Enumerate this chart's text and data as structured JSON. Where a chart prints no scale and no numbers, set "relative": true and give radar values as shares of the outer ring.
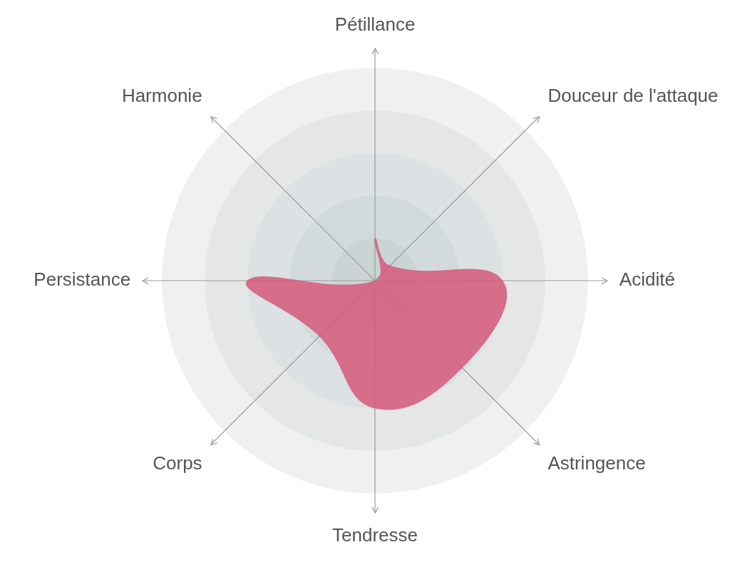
{
  "chart_data": {
    "type": "radar",
    "relative": true,
    "categories": [
      "Pétillance",
      "Douceur de l'attaque",
      "Acidité",
      "Astringence",
      "Tendresse",
      "Corps",
      "Persistance",
      "Harmonie"
    ],
    "series": [
      {
        "color": "#d45c7e",
        "values": [
          0.2,
          0.1,
          0.6,
          0.58,
          0.6,
          0.37,
          0.6,
          0
        ]
      }
    ],
    "marker": "none",
    "legend": false
  }
}
